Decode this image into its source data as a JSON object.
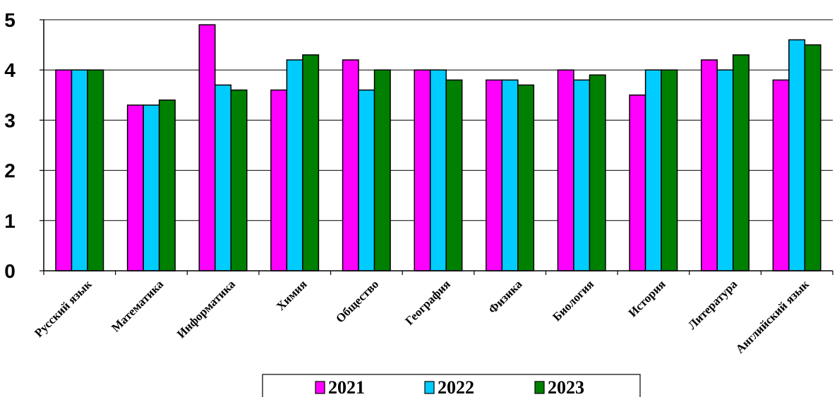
{
  "chart_data": {
    "type": "bar",
    "categories": [
      "Русский язык",
      "Математика",
      "Информатика",
      "Химия",
      "Общество",
      "География",
      "Физика",
      "Биология",
      "История",
      "Литература",
      "Английский язык"
    ],
    "series": [
      {
        "name": "2021",
        "color": "#ff00ff",
        "values": [
          4.0,
          3.3,
          4.9,
          3.6,
          4.2,
          4.0,
          3.8,
          4.0,
          3.5,
          4.2,
          3.8
        ]
      },
      {
        "name": "2022",
        "color": "#00ccff",
        "values": [
          4.0,
          3.3,
          3.7,
          4.2,
          3.6,
          4.0,
          3.8,
          3.8,
          4.0,
          4.0,
          4.6
        ]
      },
      {
        "name": "2023",
        "color": "#008000",
        "values": [
          4.0,
          3.4,
          3.6,
          4.3,
          4.0,
          3.8,
          3.7,
          3.9,
          4.0,
          4.3,
          4.5
        ]
      }
    ],
    "yticks": [
      "0",
      "1",
      "2",
      "3",
      "4",
      "5"
    ],
    "ylim": [
      0,
      5
    ],
    "grid": "horizontal",
    "legend": "bottom"
  }
}
